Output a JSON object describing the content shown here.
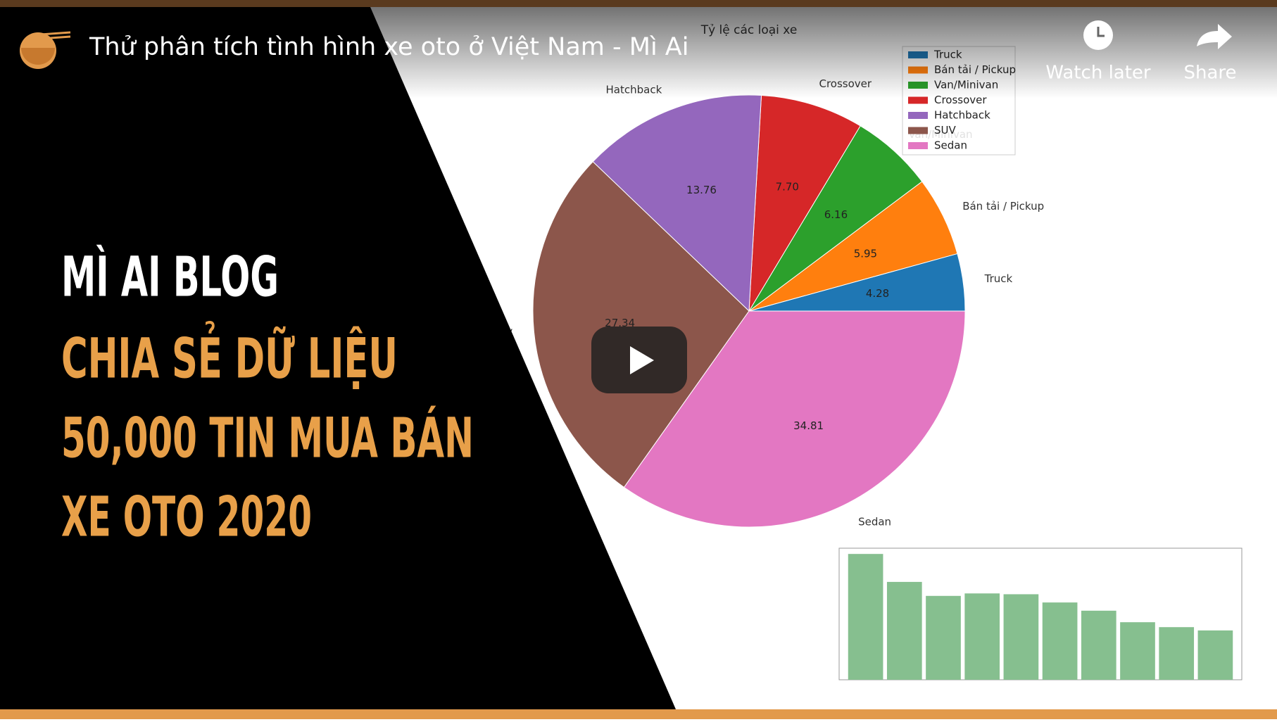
{
  "player": {
    "title": "Thử phân tích tình hình xe oto ở Việt Nam - Mì Ai",
    "watch_later": "Watch later",
    "share": "Share"
  },
  "thumbnail": {
    "lines": [
      "MÌ AI BLOG",
      "CHIA SẺ DỮ LIỆU",
      "50,000 TIN MUA BÁN",
      "XE OTO 2020"
    ]
  },
  "chart_data": [
    {
      "type": "pie",
      "title": "Tỷ lệ các loại xe",
      "categories": [
        "Truck",
        "Bán tải / Pickup",
        "Van/Minivan",
        "Crossover",
        "Hatchback",
        "SUV",
        "Sedan"
      ],
      "values": [
        4.28,
        5.95,
        6.16,
        7.7,
        13.76,
        27.34,
        34.81
      ],
      "value_labels": [
        "4.28",
        "5.95",
        "6.16",
        "7.70",
        "13.76",
        "27.34",
        "34.81"
      ],
      "colors": [
        "#1f77b4",
        "#ff7f0e",
        "#2ca02c",
        "#d62728",
        "#9467bd",
        "#8c564b",
        "#e377c2"
      ],
      "legend": "upper right"
    },
    {
      "type": "bar",
      "values": [
        153,
        119,
        102,
        105,
        104,
        94,
        84,
        70,
        64,
        60
      ],
      "color": "#86bf8f",
      "ylim": [
        0,
        160
      ]
    }
  ]
}
